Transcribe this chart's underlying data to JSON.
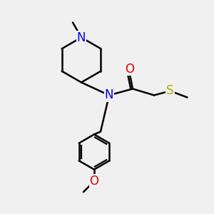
{
  "bg_color": "#f0f0f0",
  "atom_colors": {
    "C": "#000000",
    "N": "#0000ee",
    "O": "#dd0000",
    "S": "#aaaa00"
  },
  "bond_color": "#000000",
  "bond_width": 1.8,
  "font_size_atoms": 12,
  "font_size_small": 10,
  "figsize": [
    3.0,
    3.0
  ],
  "dpi": 100,
  "xlim": [
    0,
    10
  ],
  "ylim": [
    0,
    10
  ]
}
